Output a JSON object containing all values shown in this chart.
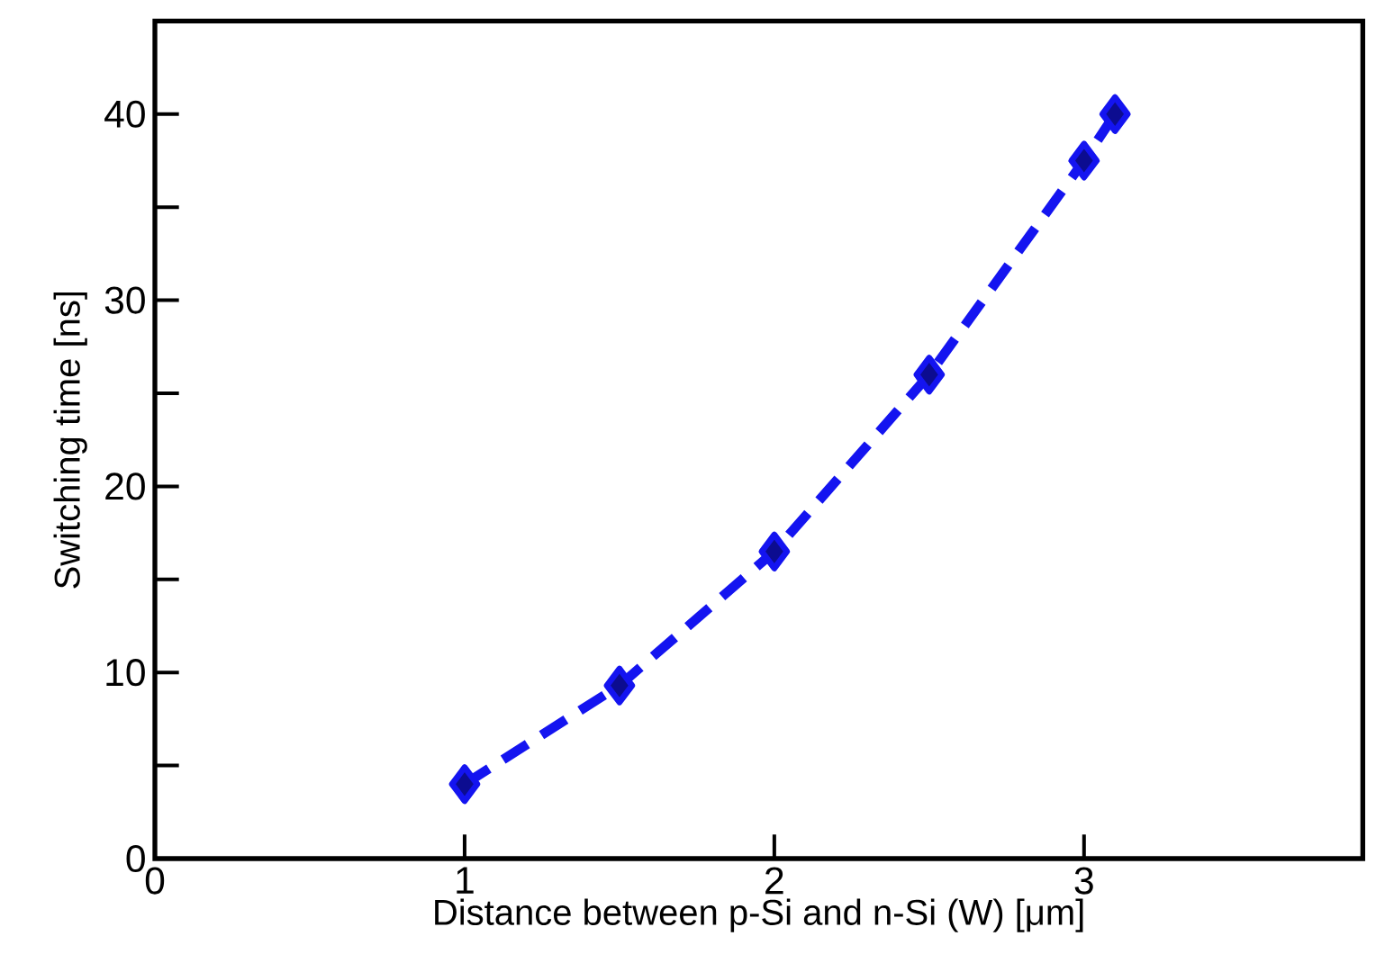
{
  "chart_data": {
    "type": "line",
    "xlabel": "Distance between p-Si and n-Si (W) [μm]",
    "ylabel": "Switching time [ns]",
    "x": [
      1,
      1.5,
      2,
      2.5,
      3,
      3.1
    ],
    "series": [
      {
        "color": "#1414f0",
        "values": [
          4,
          9.3,
          16.5,
          26,
          37.5,
          40
        ]
      }
    ],
    "xlim": [
      0,
      3.9
    ],
    "ylim": [
      0,
      45
    ],
    "xticks": [
      0,
      1,
      2,
      3
    ],
    "yticks": [
      0,
      {
        "value": 5,
        "label": null
      },
      10,
      {
        "value": 15,
        "label": null
      },
      20,
      {
        "value": 25,
        "label": null
      },
      30,
      {
        "value": 35,
        "label": null
      },
      40
    ],
    "marker": "diamond",
    "line_style": "dashed"
  }
}
